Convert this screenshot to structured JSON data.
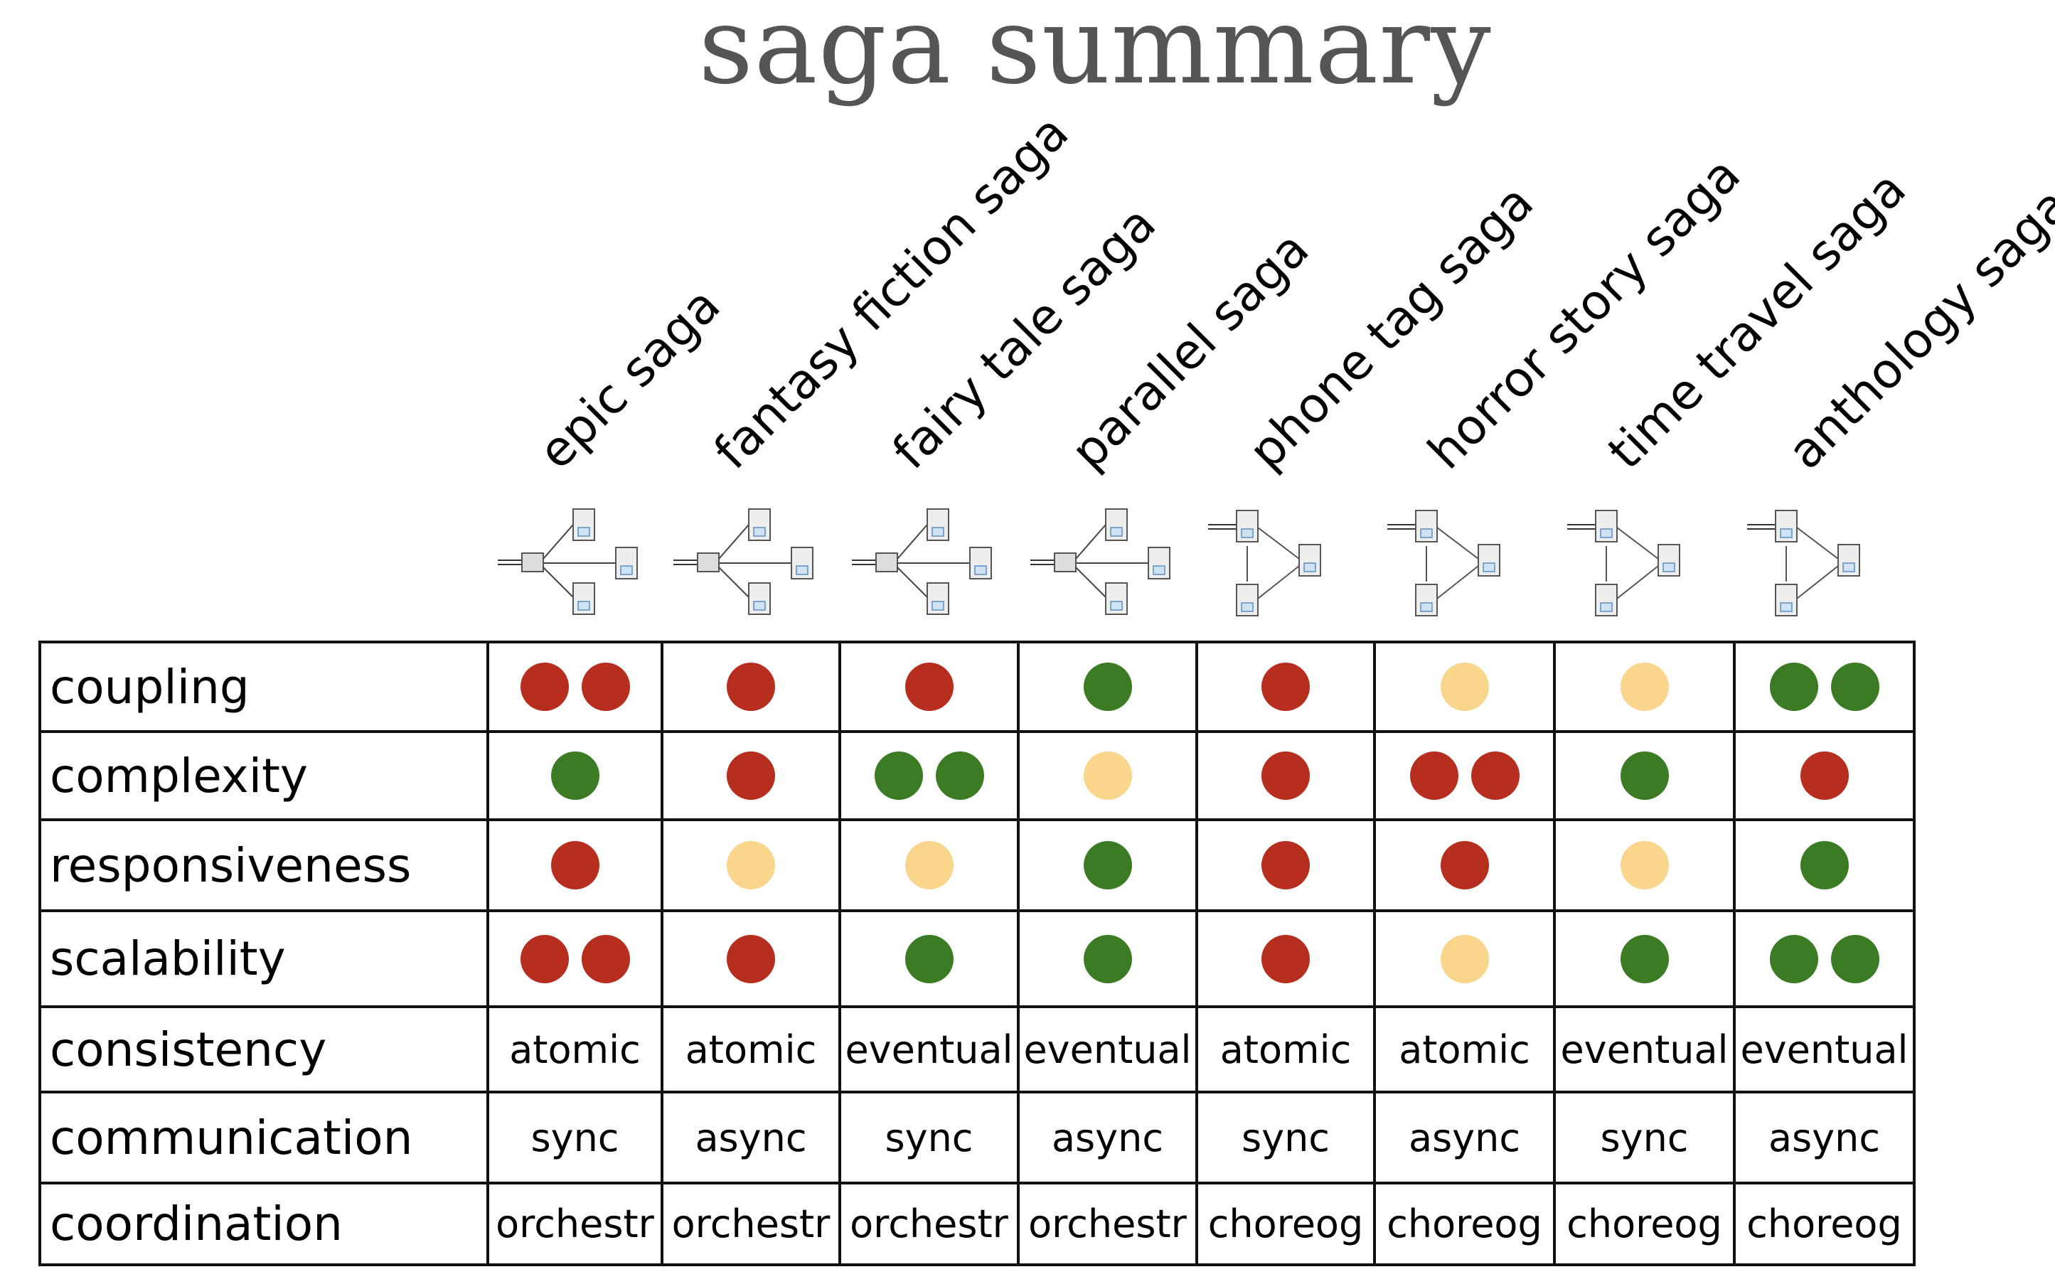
{
  "title": "saga summary",
  "columns": [
    {
      "name": "epic saga"
    },
    {
      "name": "fantasy fiction saga"
    },
    {
      "name": "fairy tale saga"
    },
    {
      "name": "parallel saga"
    },
    {
      "name": "phone tag saga"
    },
    {
      "name": "horror story saga"
    },
    {
      "name": "time travel saga"
    },
    {
      "name": "anthology saga"
    }
  ],
  "rating_colors": {
    "red": "#b82e1e",
    "green": "#3a7b23",
    "yellow": "#f9d68c"
  },
  "ratings": [
    {
      "label": "coupling",
      "cells": [
        [
          "red",
          "red"
        ],
        [
          "red"
        ],
        [
          "red"
        ],
        [
          "green"
        ],
        [
          "red"
        ],
        [
          "yellow"
        ],
        [
          "yellow"
        ],
        [
          "green",
          "green"
        ]
      ]
    },
    {
      "label": "complexity",
      "cells": [
        [
          "green"
        ],
        [
          "red"
        ],
        [
          "green",
          "green"
        ],
        [
          "yellow"
        ],
        [
          "red"
        ],
        [
          "red",
          "red"
        ],
        [
          "green"
        ],
        [
          "red"
        ]
      ]
    },
    {
      "label": "responsiveness",
      "cells": [
        [
          "red"
        ],
        [
          "yellow"
        ],
        [
          "yellow"
        ],
        [
          "green"
        ],
        [
          "red"
        ],
        [
          "red"
        ],
        [
          "yellow"
        ],
        [
          "green"
        ]
      ]
    },
    {
      "label": "scalability",
      "cells": [
        [
          "red",
          "red"
        ],
        [
          "red"
        ],
        [
          "green"
        ],
        [
          "green"
        ],
        [
          "red"
        ],
        [
          "yellow"
        ],
        [
          "green"
        ],
        [
          "green",
          "green"
        ]
      ]
    }
  ],
  "properties": [
    {
      "label": "consistency",
      "values": [
        "atomic",
        "atomic",
        "eventual",
        "eventual",
        "atomic",
        "atomic",
        "eventual",
        "eventual"
      ]
    },
    {
      "label": "communication",
      "values": [
        "sync",
        "async",
        "sync",
        "async",
        "sync",
        "async",
        "sync",
        "async"
      ]
    },
    {
      "label": "coordination",
      "values": [
        "orchestr",
        "orchestr",
        "orchestr",
        "orchestr",
        "choreog",
        "choreog",
        "choreog",
        "choreog"
      ]
    }
  ],
  "diagram_icons": [
    "orchestrator-diagram-icon",
    "orchestrator-diagram-icon",
    "orchestrator-diagram-icon",
    "orchestrator-diagram-icon",
    "choreography-diagram-icon",
    "choreography-diagram-icon",
    "choreography-diagram-icon",
    "choreography-diagram-icon"
  ]
}
